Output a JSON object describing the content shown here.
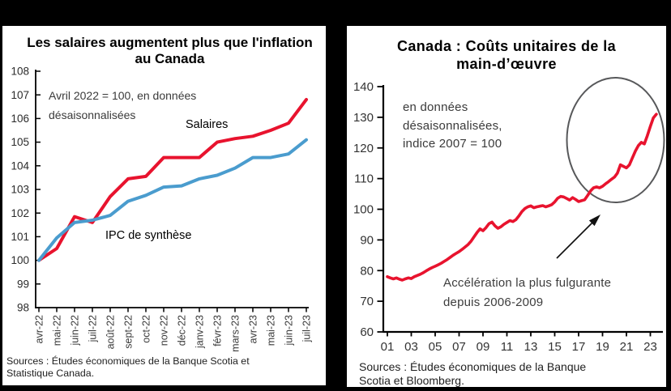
{
  "colors": {
    "salaires_red": "#e8132e",
    "ipc_blue": "#4a9cce",
    "ellipse_gray": "#57585a",
    "axis_black": "#000000",
    "background": "#000000",
    "panel": "#ffffff"
  },
  "chart_data": [
    {
      "id": "wages-vs-inflation",
      "type": "line",
      "title": "Les salaires augmentent plus que l'inflation au Canada",
      "title_lines": [
        "Les salaires augmentent plus que l'inflation",
        "au Canada"
      ],
      "note_lines": [
        "Avril 2022 = 100, en données",
        "désaisonnalisées"
      ],
      "categories": [
        "avr-22",
        "mai-22",
        "juin-22",
        "juil-22",
        "août-22",
        "sept-22",
        "oct-22",
        "nov-22",
        "déc-22",
        "janv-23",
        "févr-23",
        "mars-23",
        "avr-23",
        "mai-23",
        "juin-23",
        "juil-23"
      ],
      "series": [
        {
          "name": "Salaires",
          "color": "#e8132e",
          "values": [
            100,
            100.5,
            101.85,
            101.6,
            102.7,
            103.45,
            103.55,
            104.35,
            104.35,
            104.35,
            105.0,
            105.15,
            105.25,
            105.5,
            105.8,
            106.8
          ]
        },
        {
          "name": "IPC de synthèse",
          "color": "#4a9cce",
          "values": [
            100,
            100.95,
            101.6,
            101.7,
            101.9,
            102.5,
            102.75,
            103.1,
            103.15,
            103.45,
            103.6,
            103.9,
            104.35,
            104.35,
            104.5,
            105.1
          ]
        }
      ],
      "ylim": [
        98,
        108
      ],
      "ytick_step": 1,
      "grid": false,
      "sources": [
        "Sources : Études économiques de la Banque Scotia et",
        "Statistique Canada."
      ]
    },
    {
      "id": "unit-labour-costs",
      "type": "line",
      "title": "Canada : Coûts unitaires de la main-d'œuvre",
      "title_lines": [
        "Canada : Coûts unitaires de la",
        "main-d’œuvre"
      ],
      "note_lines": [
        "en données",
        "désaisonnalisées,",
        "indice 2007 = 100"
      ],
      "annotation_lines": [
        "Accélération la plus fulgurante",
        "depuis 2006-2009"
      ],
      "x_start_year": 2001,
      "x_step_years": 0.25,
      "x_labels": [
        "01",
        "03",
        "05",
        "07",
        "09",
        "11",
        "13",
        "15",
        "17",
        "19",
        "21",
        "23"
      ],
      "series": [
        {
          "name": "Coûts unitaires de la main-d'œuvre",
          "color": "#e8132e",
          "values": [
            78.0,
            77.6,
            77.3,
            77.6,
            77.2,
            76.9,
            77.3,
            77.6,
            77.4,
            78.0,
            78.4,
            78.8,
            79.3,
            79.9,
            80.5,
            81.0,
            81.4,
            81.9,
            82.4,
            83.0,
            83.6,
            84.3,
            85.0,
            85.6,
            86.2,
            86.9,
            87.7,
            88.5,
            89.6,
            91.0,
            92.4,
            93.6,
            93.0,
            94.0,
            95.3,
            95.8,
            94.6,
            93.8,
            94.3,
            95.1,
            95.7,
            96.3,
            96.0,
            96.6,
            97.8,
            99.2,
            100.2,
            100.8,
            101.1,
            100.5,
            100.8,
            101.0,
            101.2,
            100.8,
            101.1,
            101.5,
            102.4,
            103.6,
            104.2,
            104.0,
            103.5,
            103.0,
            103.8,
            103.2,
            102.5,
            102.8,
            103.1,
            104.5,
            106.0,
            107.0,
            107.3,
            107.0,
            107.5,
            108.3,
            109.0,
            109.8,
            110.5,
            111.8,
            114.5,
            114.0,
            113.5,
            114.5,
            116.8,
            119.0,
            120.8,
            121.8,
            121.3,
            124.0,
            127.0,
            129.8,
            131.0
          ]
        }
      ],
      "ylim": [
        60,
        140
      ],
      "ytick_step": 10,
      "grid": false,
      "sources": [
        "Sources : Études économiques de la Banque",
        "Scotia et Bloomberg."
      ]
    }
  ]
}
